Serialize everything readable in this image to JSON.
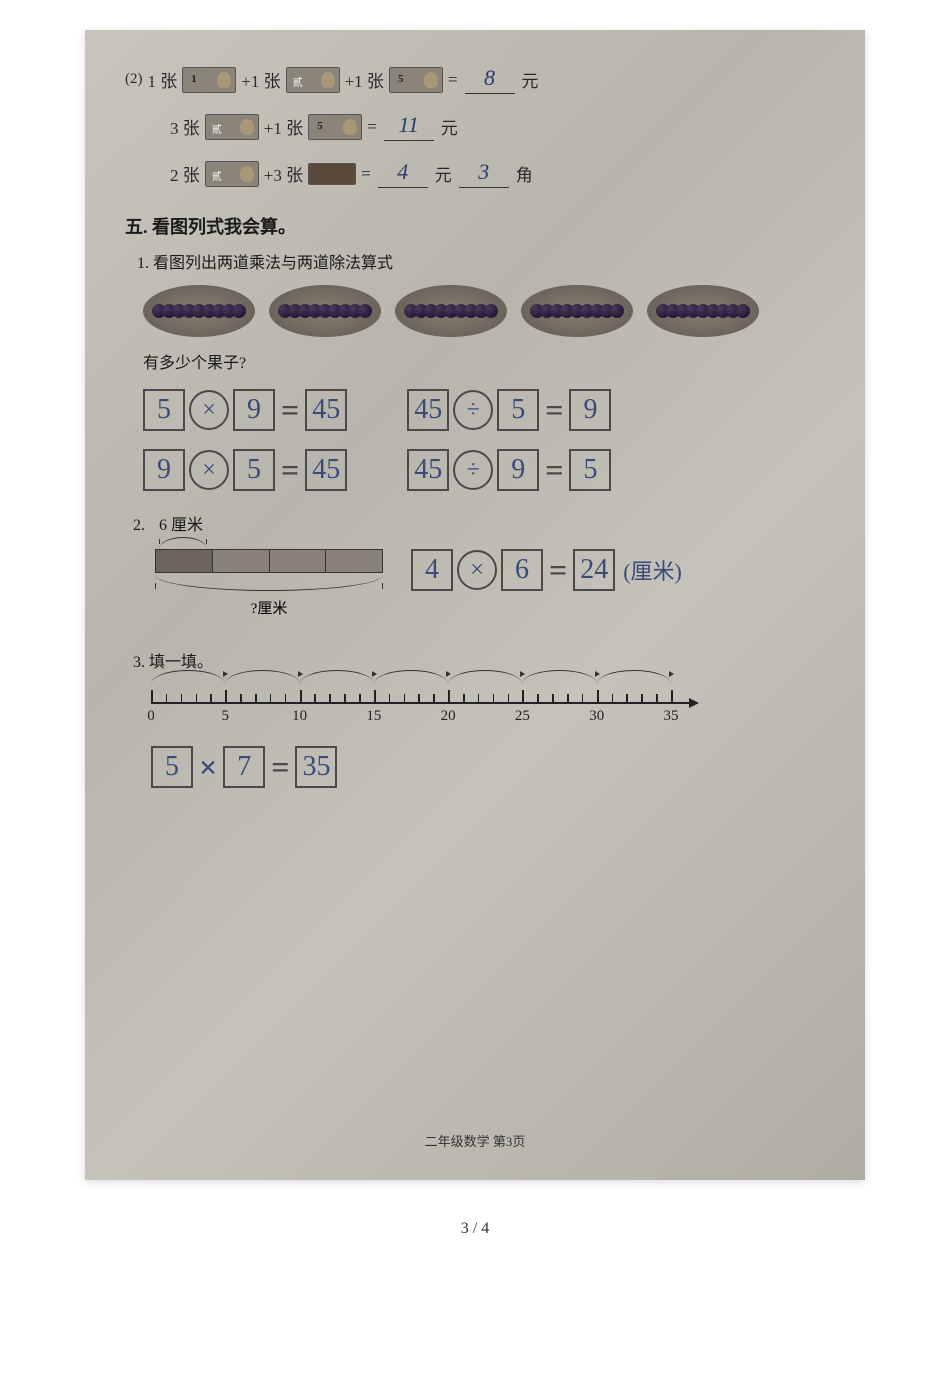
{
  "money": {
    "marker": "(2)",
    "rows": [
      {
        "parts": [
          {
            "count": "1 张",
            "bill": "bill-1"
          },
          {
            "plus": "+1 张",
            "bill": "bill-2"
          },
          {
            "plus": "+1 张",
            "bill": "bill-5"
          }
        ],
        "answer": "8",
        "unit1": "元",
        "answer2": "",
        "unit2": ""
      },
      {
        "parts": [
          {
            "count": "3 张",
            "bill": "bill-2"
          },
          {
            "plus": "+1 张",
            "bill": "bill-5"
          }
        ],
        "answer": "11",
        "unit1": "元",
        "answer2": "",
        "unit2": ""
      },
      {
        "parts": [
          {
            "count": "2 张",
            "bill": "bill-2"
          },
          {
            "plus": "+3 张",
            "bill": "bill-small"
          }
        ],
        "answer": "4",
        "unit1": "元",
        "answer2": "3",
        "unit2": "角"
      }
    ]
  },
  "section5": {
    "title": "五. 看图列式我会算。",
    "q1": {
      "title": "1. 看图列出两道乘法与两道除法算式",
      "question": "有多少个果子?",
      "eq1": {
        "a": "5",
        "op": "×",
        "b": "9",
        "r": "45"
      },
      "eq2": {
        "a": "45",
        "op": "÷",
        "b": "5",
        "r": "9"
      },
      "eq3": {
        "a": "9",
        "op": "×",
        "b": "5",
        "r": "45"
      },
      "eq4": {
        "a": "45",
        "op": "÷",
        "b": "9",
        "r": "5"
      }
    },
    "q2": {
      "marker": "2.",
      "label6cm": "6 厘米",
      "qcm": "?厘米",
      "eq": {
        "a": "4",
        "op": "×",
        "b": "6",
        "r": "24"
      },
      "unit": "(厘米)"
    },
    "q3": {
      "title": "3. 填一填。",
      "ticks": [
        "0",
        "5",
        "10",
        "15",
        "20",
        "25",
        "30",
        "35"
      ],
      "eq": {
        "a": "5",
        "op": "×",
        "b": "7",
        "r": "35"
      }
    }
  },
  "footer": "二年级数学 第3页",
  "pagenum": "3 / 4"
}
